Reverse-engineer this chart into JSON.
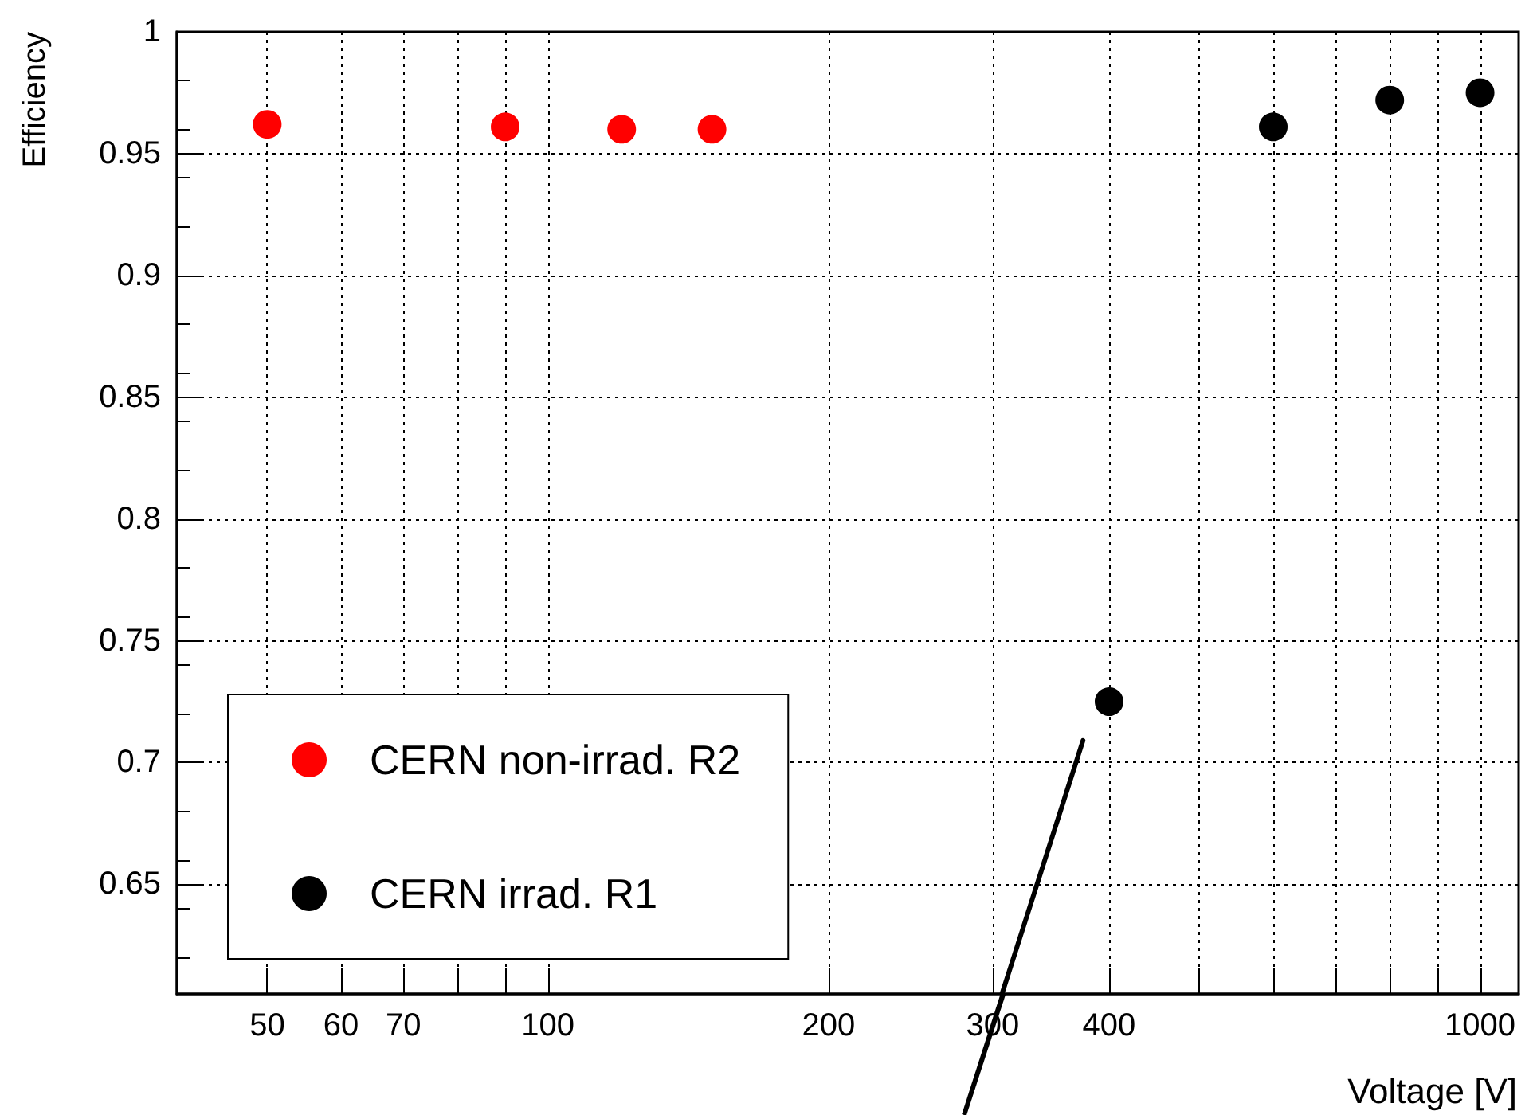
{
  "chart_data": {
    "type": "scatter",
    "xlabel": "Voltage [V]",
    "ylabel": "Efficiency",
    "log": "x",
    "grid": true,
    "legend": "bottom left",
    "marker": "circle",
    "xlim": [
      40,
      1100
    ],
    "ylim": [
      0.605,
      1
    ],
    "xticks": [
      50,
      60,
      70,
      {
        "value": 80,
        "label": null
      },
      {
        "value": 90,
        "label": null
      },
      100,
      200,
      300,
      400,
      {
        "value": 500,
        "label": null
      },
      {
        "value": 600,
        "label": null
      },
      {
        "value": 700,
        "label": null
      },
      {
        "value": 800,
        "label": null
      },
      {
        "value": 900,
        "label": null
      },
      1000
    ],
    "yticks": [
      0.65,
      0.7,
      0.75,
      0.8,
      0.85,
      0.9,
      0.95,
      1
    ],
    "series": [
      {
        "name": "CERN non-irrad. R2",
        "color": "#ff0000",
        "x": [
          50,
          90,
          120,
          150
        ],
        "values": [
          0.962,
          0.961,
          0.96,
          0.96
        ]
      },
      {
        "name": "CERN irrad. R1",
        "color": "#000000",
        "x": [
          400,
          600,
          800,
          1000
        ],
        "values": [
          0.725,
          0.961,
          0.972,
          0.975
        ]
      },
      {
        "type": "line",
        "color": "#000000",
        "marker": "none",
        "x": [
          307,
          375
        ],
        "values": [
          0.605,
          0.709
        ]
      }
    ]
  }
}
